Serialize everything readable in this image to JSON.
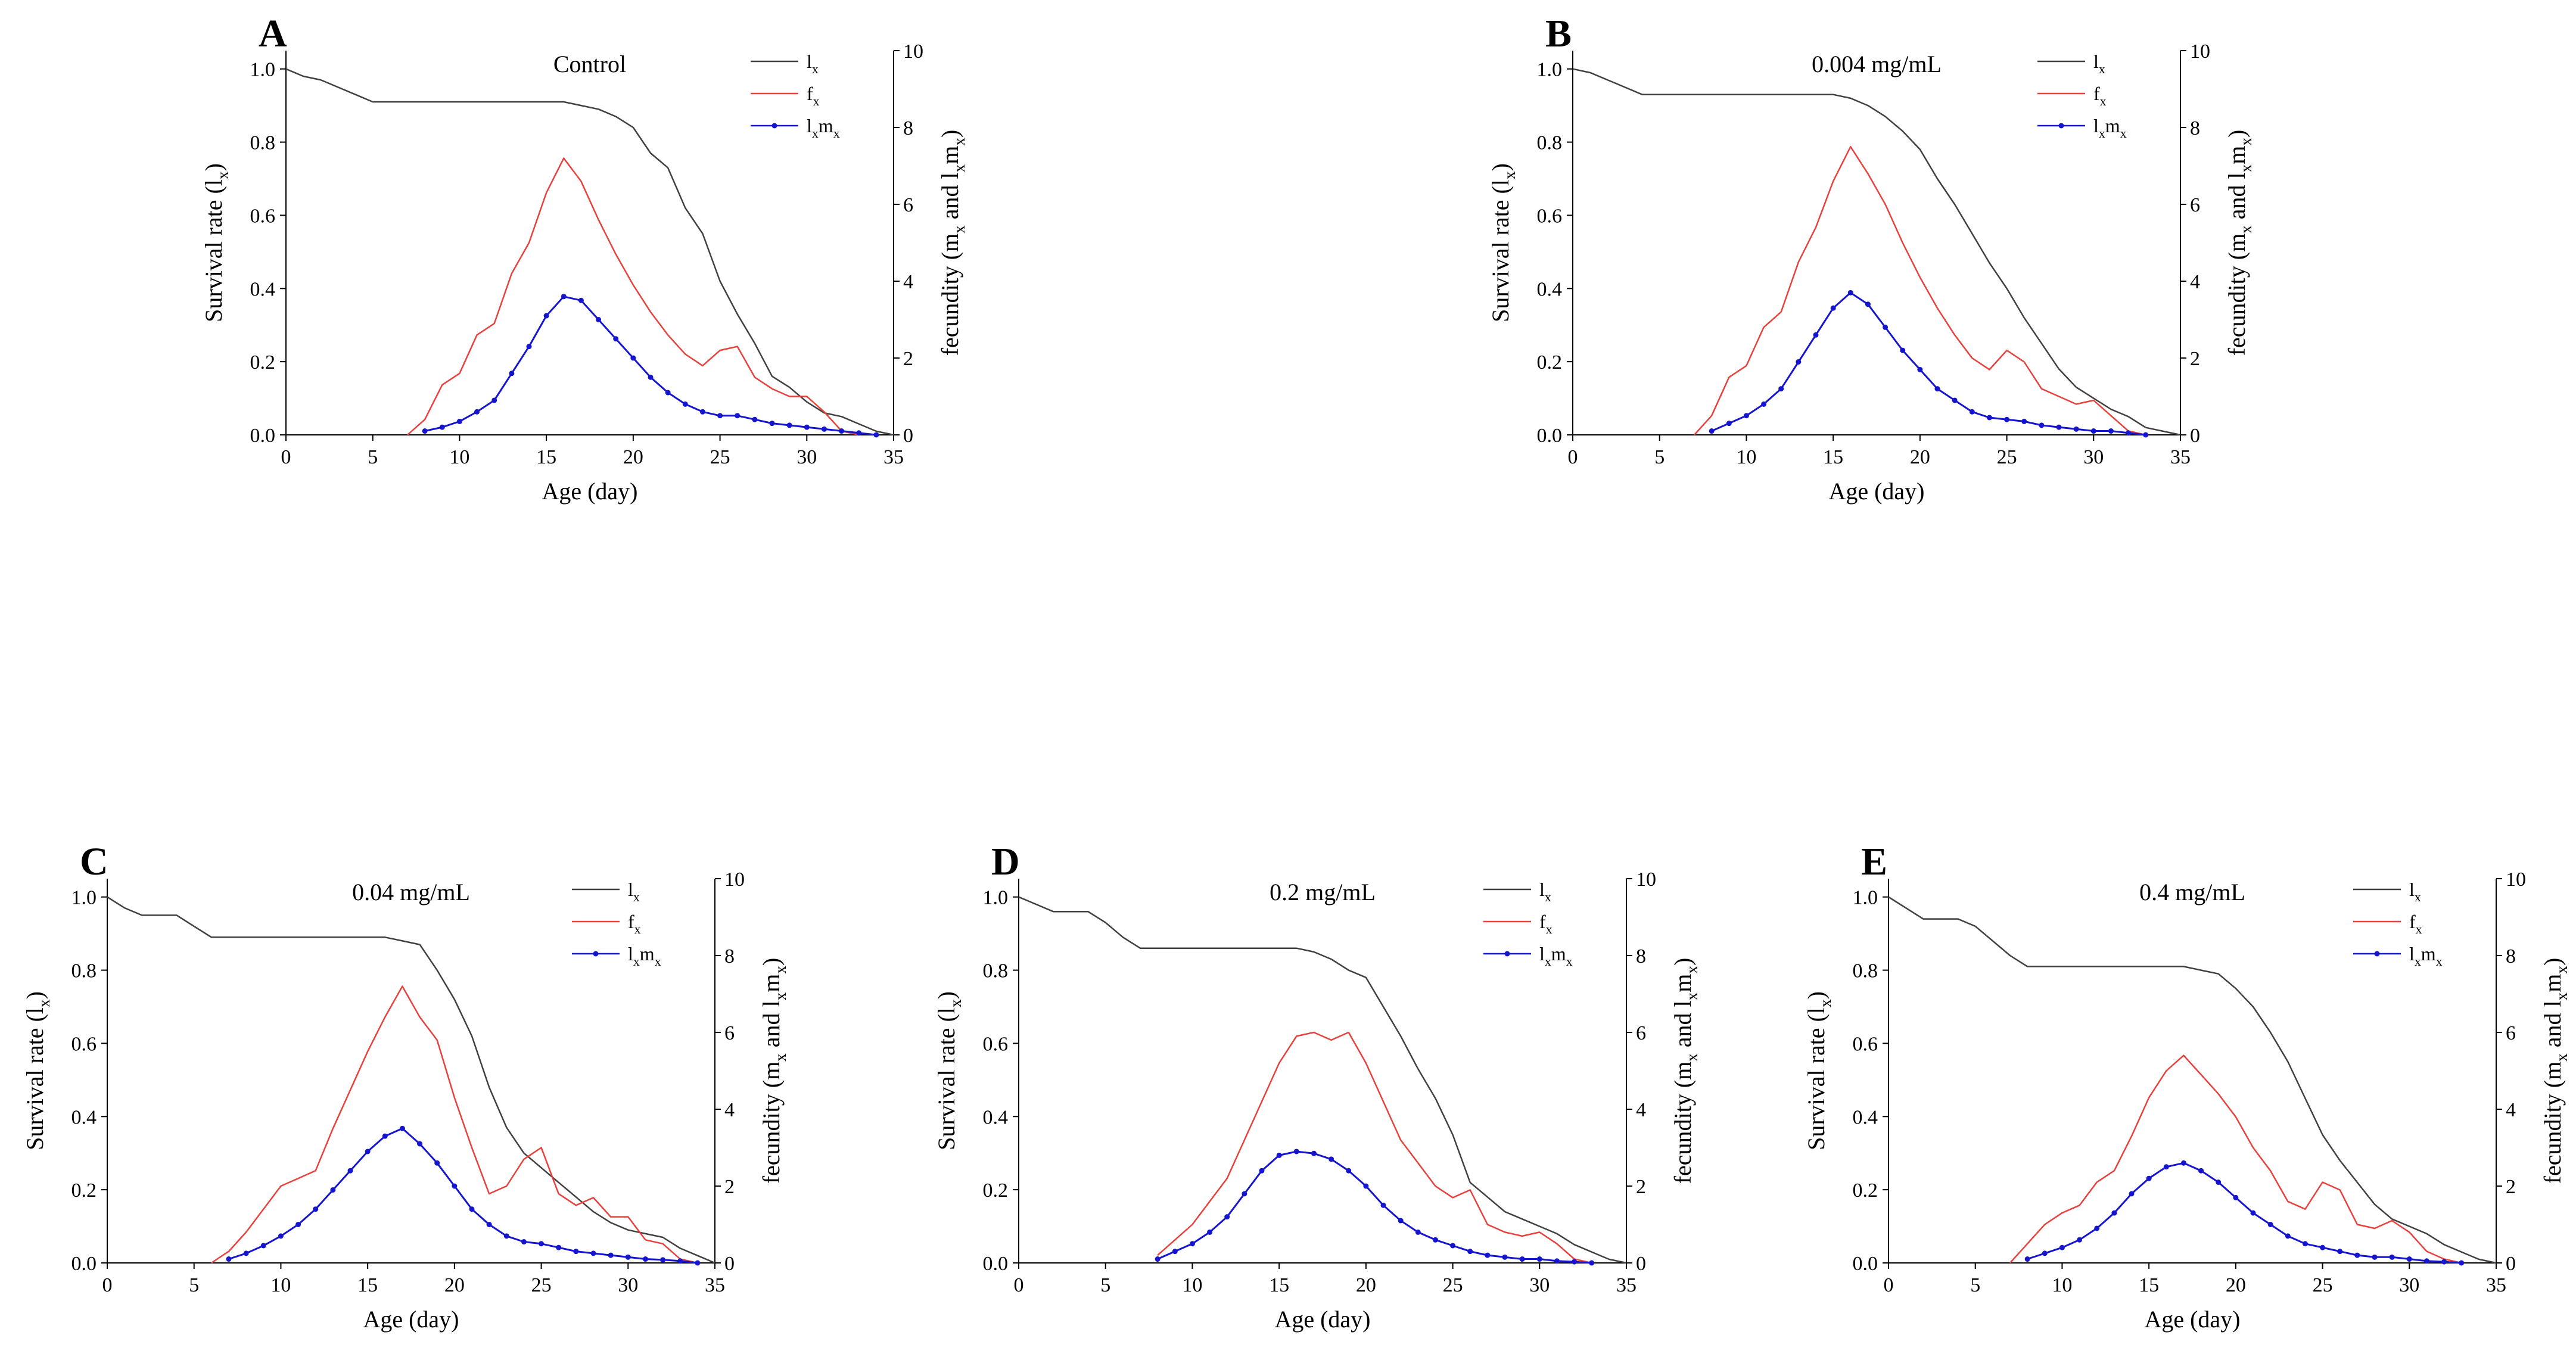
{
  "figure_name": "Life-table curves under increasing concentrations",
  "chart_data": {
    "type": "line",
    "common": {
      "colors": {
        "lx": "#404040",
        "fx": "#e8403c",
        "lxmx": "#1515d0"
      },
      "axes": {
        "xlabel": "Age (day)",
        "xlim": [
          0,
          35
        ],
        "x_ticks": [
          0,
          5,
          10,
          15,
          20,
          25,
          30,
          35
        ],
        "ylabel_left_segments": [
          [
            "Survival rate (l",
            0
          ],
          [
            "x",
            1
          ],
          [
            ")",
            0
          ]
        ],
        "yleft_ticks": [
          "0.0",
          "0.2",
          "0.4",
          "0.6",
          "0.8",
          "1.0"
        ],
        "yleft_lim": [
          0,
          1.05
        ],
        "ylabel_right_segments": [
          [
            "fecundity (m",
            0
          ],
          [
            "x",
            1
          ],
          [
            " and l",
            0
          ],
          [
            "x",
            1
          ],
          [
            "m",
            0
          ],
          [
            "x",
            1
          ],
          [
            ")",
            0
          ]
        ],
        "yright_ticks": [
          0,
          2,
          4,
          6,
          8,
          10
        ],
        "yright_lim": [
          0,
          10
        ],
        "grid": false
      },
      "legend": {
        "position": "top-right-inside",
        "entries": [
          {
            "series": "lx",
            "label_segments": [
              [
                "l",
                0
              ],
              [
                "x",
                1
              ]
            ]
          },
          {
            "series": "fx",
            "label_segments": [
              [
                "f",
                0
              ],
              [
                "x",
                1
              ]
            ]
          },
          {
            "series": "lxmx",
            "label_segments": [
              [
                "l",
                0
              ],
              [
                "x",
                1
              ],
              [
                "m",
                0
              ],
              [
                "x",
                1
              ]
            ]
          }
        ]
      }
    },
    "panels": [
      {
        "panel": "A",
        "title": "Control",
        "x": [
          0,
          1,
          2,
          3,
          4,
          5,
          6,
          7,
          8,
          9,
          10,
          11,
          12,
          13,
          14,
          15,
          16,
          17,
          18,
          19,
          20,
          21,
          22,
          23,
          24,
          25,
          26,
          27,
          28,
          29,
          30,
          31,
          32,
          33,
          34,
          35
        ],
        "series": [
          {
            "name": "lx",
            "axis": "left",
            "marker": false,
            "values": [
              1.0,
              0.98,
              0.97,
              0.95,
              0.93,
              0.91,
              0.91,
              0.91,
              0.91,
              0.91,
              0.91,
              0.91,
              0.91,
              0.91,
              0.91,
              0.91,
              0.91,
              0.9,
              0.89,
              0.87,
              0.84,
              0.77,
              0.73,
              0.62,
              0.55,
              0.42,
              0.33,
              0.25,
              0.16,
              0.13,
              0.09,
              0.06,
              0.05,
              0.03,
              0.01,
              0.0
            ]
          },
          {
            "name": "fx",
            "axis": "right",
            "marker": false,
            "values": [
              null,
              null,
              null,
              null,
              null,
              null,
              null,
              0,
              0.4,
              1.3,
              1.6,
              2.6,
              2.9,
              4.2,
              5.0,
              6.3,
              7.2,
              6.6,
              5.6,
              4.7,
              3.9,
              3.2,
              2.6,
              2.1,
              1.8,
              2.2,
              2.3,
              1.5,
              1.2,
              1.0,
              1.0,
              0.6,
              0.1,
              0,
              null,
              null
            ]
          },
          {
            "name": "lxmx",
            "axis": "right",
            "marker": true,
            "values": [
              null,
              null,
              null,
              null,
              null,
              null,
              null,
              null,
              0.1,
              0.2,
              0.35,
              0.6,
              0.9,
              1.6,
              2.3,
              3.1,
              3.6,
              3.5,
              3.0,
              2.5,
              2.0,
              1.5,
              1.1,
              0.8,
              0.6,
              0.5,
              0.5,
              0.4,
              0.3,
              0.25,
              0.2,
              0.15,
              0.1,
              0.05,
              0,
              null
            ]
          }
        ]
      },
      {
        "panel": "B",
        "title": "0.004 mg/mL",
        "x": [
          0,
          1,
          2,
          3,
          4,
          5,
          6,
          7,
          8,
          9,
          10,
          11,
          12,
          13,
          14,
          15,
          16,
          17,
          18,
          19,
          20,
          21,
          22,
          23,
          24,
          25,
          26,
          27,
          28,
          29,
          30,
          31,
          32,
          33,
          34,
          35
        ],
        "series": [
          {
            "name": "lx",
            "axis": "left",
            "marker": false,
            "values": [
              1.0,
              0.99,
              0.97,
              0.95,
              0.93,
              0.93,
              0.93,
              0.93,
              0.93,
              0.93,
              0.93,
              0.93,
              0.93,
              0.93,
              0.93,
              0.93,
              0.92,
              0.9,
              0.87,
              0.83,
              0.78,
              0.7,
              0.63,
              0.55,
              0.47,
              0.4,
              0.32,
              0.25,
              0.18,
              0.13,
              0.1,
              0.07,
              0.05,
              0.02,
              0.01,
              0.0
            ]
          },
          {
            "name": "fx",
            "axis": "right",
            "marker": false,
            "values": [
              null,
              null,
              null,
              null,
              null,
              null,
              null,
              0,
              0.5,
              1.5,
              1.8,
              2.8,
              3.2,
              4.5,
              5.4,
              6.6,
              7.5,
              6.8,
              6.0,
              5.0,
              4.1,
              3.3,
              2.6,
              2.0,
              1.7,
              2.2,
              1.9,
              1.2,
              1.0,
              0.8,
              0.9,
              0.5,
              0.1,
              0,
              null,
              null
            ]
          },
          {
            "name": "lxmx",
            "axis": "right",
            "marker": true,
            "values": [
              null,
              null,
              null,
              null,
              null,
              null,
              null,
              null,
              0.1,
              0.3,
              0.5,
              0.8,
              1.2,
              1.9,
              2.6,
              3.3,
              3.7,
              3.4,
              2.8,
              2.2,
              1.7,
              1.2,
              0.9,
              0.6,
              0.45,
              0.4,
              0.35,
              0.25,
              0.2,
              0.15,
              0.1,
              0.1,
              0.05,
              0,
              null,
              null
            ]
          }
        ]
      },
      {
        "panel": "C",
        "title": "0.04 mg/mL",
        "x": [
          0,
          1,
          2,
          3,
          4,
          5,
          6,
          7,
          8,
          9,
          10,
          11,
          12,
          13,
          14,
          15,
          16,
          17,
          18,
          19,
          20,
          21,
          22,
          23,
          24,
          25,
          26,
          27,
          28,
          29,
          30,
          31,
          32,
          33,
          34,
          35
        ],
        "series": [
          {
            "name": "lx",
            "axis": "left",
            "marker": false,
            "values": [
              1.0,
              0.97,
              0.95,
              0.95,
              0.95,
              0.92,
              0.89,
              0.89,
              0.89,
              0.89,
              0.89,
              0.89,
              0.89,
              0.89,
              0.89,
              0.89,
              0.89,
              0.88,
              0.87,
              0.8,
              0.72,
              0.62,
              0.48,
              0.37,
              0.3,
              0.26,
              0.22,
              0.18,
              0.14,
              0.11,
              0.09,
              0.08,
              0.07,
              0.04,
              0.02,
              0.0
            ]
          },
          {
            "name": "fx",
            "axis": "right",
            "marker": false,
            "values": [
              null,
              null,
              null,
              null,
              null,
              null,
              0,
              0.3,
              0.8,
              1.4,
              2.0,
              2.2,
              2.4,
              3.5,
              4.5,
              5.5,
              6.4,
              7.2,
              6.4,
              5.8,
              4.3,
              3.0,
              1.8,
              2.0,
              2.7,
              3.0,
              1.8,
              1.5,
              1.7,
              1.2,
              1.2,
              0.6,
              0.5,
              0.1,
              0,
              null
            ]
          },
          {
            "name": "lxmx",
            "axis": "right",
            "marker": true,
            "values": [
              null,
              null,
              null,
              null,
              null,
              null,
              null,
              0.1,
              0.25,
              0.45,
              0.7,
              1.0,
              1.4,
              1.9,
              2.4,
              2.9,
              3.3,
              3.5,
              3.1,
              2.6,
              2.0,
              1.4,
              1.0,
              0.7,
              0.55,
              0.5,
              0.4,
              0.3,
              0.25,
              0.2,
              0.15,
              0.1,
              0.08,
              0.05,
              0,
              null
            ]
          }
        ]
      },
      {
        "panel": "D",
        "title": "0.2 mg/mL",
        "x": [
          0,
          1,
          2,
          3,
          4,
          5,
          6,
          7,
          8,
          9,
          10,
          11,
          12,
          13,
          14,
          15,
          16,
          17,
          18,
          19,
          20,
          21,
          22,
          23,
          24,
          25,
          26,
          27,
          28,
          29,
          30,
          31,
          32,
          33,
          34,
          35
        ],
        "series": [
          {
            "name": "lx",
            "axis": "left",
            "marker": false,
            "values": [
              1.0,
              0.98,
              0.96,
              0.96,
              0.96,
              0.93,
              0.89,
              0.86,
              0.86,
              0.86,
              0.86,
              0.86,
              0.86,
              0.86,
              0.86,
              0.86,
              0.86,
              0.85,
              0.83,
              0.8,
              0.78,
              0.7,
              0.62,
              0.53,
              0.45,
              0.35,
              0.22,
              0.18,
              0.14,
              0.12,
              0.1,
              0.08,
              0.05,
              0.03,
              0.01,
              0.0
            ]
          },
          {
            "name": "fx",
            "axis": "right",
            "marker": false,
            "values": [
              null,
              null,
              null,
              null,
              null,
              null,
              null,
              null,
              0.2,
              0.6,
              1.0,
              1.6,
              2.2,
              3.2,
              4.2,
              5.2,
              5.9,
              6.0,
              5.8,
              6.0,
              5.2,
              4.2,
              3.2,
              2.6,
              2.0,
              1.7,
              1.9,
              1.0,
              0.8,
              0.7,
              0.8,
              0.5,
              0.1,
              0,
              null,
              null
            ]
          },
          {
            "name": "lxmx",
            "axis": "right",
            "marker": true,
            "values": [
              null,
              null,
              null,
              null,
              null,
              null,
              null,
              null,
              0.1,
              0.3,
              0.5,
              0.8,
              1.2,
              1.8,
              2.4,
              2.8,
              2.9,
              2.85,
              2.7,
              2.4,
              2.0,
              1.5,
              1.1,
              0.8,
              0.6,
              0.45,
              0.3,
              0.2,
              0.15,
              0.1,
              0.1,
              0.05,
              0.03,
              0,
              null,
              null
            ]
          }
        ]
      },
      {
        "panel": "E",
        "title": "0.4 mg/mL",
        "x": [
          0,
          1,
          2,
          3,
          4,
          5,
          6,
          7,
          8,
          9,
          10,
          11,
          12,
          13,
          14,
          15,
          16,
          17,
          18,
          19,
          20,
          21,
          22,
          23,
          24,
          25,
          26,
          27,
          28,
          29,
          30,
          31,
          32,
          33,
          34,
          35
        ],
        "series": [
          {
            "name": "lx",
            "axis": "left",
            "marker": false,
            "values": [
              1.0,
              0.97,
              0.94,
              0.94,
              0.94,
              0.92,
              0.88,
              0.84,
              0.81,
              0.81,
              0.81,
              0.81,
              0.81,
              0.81,
              0.81,
              0.81,
              0.81,
              0.81,
              0.8,
              0.79,
              0.75,
              0.7,
              0.63,
              0.55,
              0.45,
              0.35,
              0.28,
              0.22,
              0.16,
              0.12,
              0.1,
              0.08,
              0.05,
              0.03,
              0.01,
              0.0
            ]
          },
          {
            "name": "fx",
            "axis": "right",
            "marker": false,
            "values": [
              null,
              null,
              null,
              null,
              null,
              null,
              null,
              0,
              0.5,
              1.0,
              1.3,
              1.5,
              2.1,
              2.4,
              3.3,
              4.3,
              5.0,
              5.4,
              4.9,
              4.4,
              3.8,
              3.0,
              2.4,
              1.6,
              1.4,
              2.1,
              1.9,
              1.0,
              0.9,
              1.1,
              0.8,
              0.3,
              0.1,
              0,
              null,
              null
            ]
          },
          {
            "name": "lxmx",
            "axis": "right",
            "marker": true,
            "values": [
              null,
              null,
              null,
              null,
              null,
              null,
              null,
              null,
              0.1,
              0.25,
              0.4,
              0.6,
              0.9,
              1.3,
              1.8,
              2.2,
              2.5,
              2.6,
              2.4,
              2.1,
              1.7,
              1.3,
              1.0,
              0.7,
              0.5,
              0.4,
              0.3,
              0.2,
              0.15,
              0.15,
              0.1,
              0.05,
              0.03,
              0,
              null,
              null
            ]
          }
        ]
      }
    ]
  }
}
